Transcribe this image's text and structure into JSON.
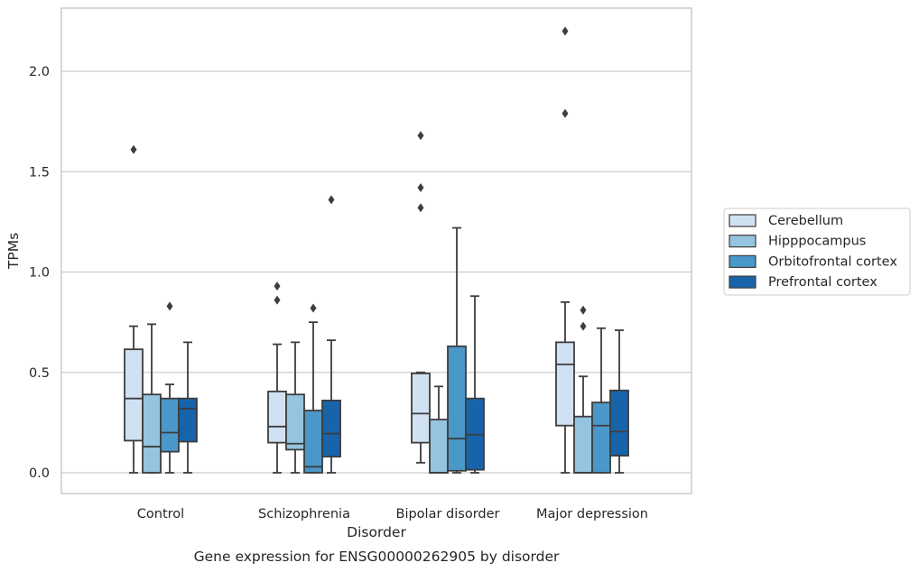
{
  "chart_data": {
    "type": "box",
    "title": "",
    "caption": "Gene expression for ENSG00000262905 by disorder",
    "xlabel": "Disorder",
    "ylabel": "TPMs",
    "ylim": [
      -0.105,
      2.33
    ],
    "yticks": [
      0.0,
      0.5,
      1.0,
      1.5,
      2.0
    ],
    "ytick_labels": [
      "0.0",
      "0.5",
      "1.0",
      "1.5",
      "2.0"
    ],
    "grid": "horizontal",
    "legend_position": "center-right",
    "categories": [
      "Control",
      "Schizophrenia",
      "Bipolar disorder",
      "Major depression"
    ],
    "series": [
      {
        "name": "Cerebellum",
        "color": "#d0e1f2",
        "boxes": [
          {
            "whislo": 0.0,
            "q1": 0.16,
            "med": 0.37,
            "q3": 0.615,
            "whishi": 0.73,
            "fliers": [
              1.61
            ]
          },
          {
            "whislo": 0.0,
            "q1": 0.15,
            "med": 0.23,
            "q3": 0.405,
            "whishi": 0.64,
            "fliers": [
              0.86,
              0.93
            ]
          },
          {
            "whislo": 0.05,
            "q1": 0.15,
            "med": 0.295,
            "q3": 0.495,
            "whishi": 0.5,
            "fliers": [
              1.32,
              1.42,
              1.68
            ]
          },
          {
            "whislo": 0.0,
            "q1": 0.235,
            "med": 0.54,
            "q3": 0.65,
            "whishi": 0.85,
            "fliers": [
              1.79,
              2.2
            ]
          }
        ]
      },
      {
        "name": "Hipppocampus",
        "color": "#94c4df",
        "boxes": [
          {
            "whislo": 0.0,
            "q1": 0.0,
            "med": 0.13,
            "q3": 0.39,
            "whishi": 0.74,
            "fliers": []
          },
          {
            "whislo": 0.0,
            "q1": 0.115,
            "med": 0.145,
            "q3": 0.39,
            "whishi": 0.65,
            "fliers": []
          },
          {
            "whislo": 0.0,
            "q1": 0.0,
            "med": 0.0,
            "q3": 0.265,
            "whishi": 0.43,
            "fliers": []
          },
          {
            "whislo": 0.0,
            "q1": 0.0,
            "med": 0.0,
            "q3": 0.28,
            "whishi": 0.48,
            "fliers": [
              0.73,
              0.81
            ]
          }
        ]
      },
      {
        "name": "Orbitofrontal cortex",
        "color": "#4a98c9",
        "boxes": [
          {
            "whislo": 0.0,
            "q1": 0.105,
            "med": 0.2,
            "q3": 0.37,
            "whishi": 0.44,
            "fliers": [
              0.83
            ]
          },
          {
            "whislo": 0.0,
            "q1": 0.0,
            "med": 0.03,
            "q3": 0.31,
            "whishi": 0.75,
            "fliers": [
              0.82
            ]
          },
          {
            "whislo": 0.0,
            "q1": 0.01,
            "med": 0.17,
            "q3": 0.63,
            "whishi": 1.22,
            "fliers": []
          },
          {
            "whislo": 0.0,
            "q1": 0.0,
            "med": 0.235,
            "q3": 0.35,
            "whishi": 0.72,
            "fliers": []
          }
        ]
      },
      {
        "name": "Prefrontal cortex",
        "color": "#1764ab",
        "boxes": [
          {
            "whislo": 0.0,
            "q1": 0.155,
            "med": 0.32,
            "q3": 0.37,
            "whishi": 0.65,
            "fliers": []
          },
          {
            "whislo": 0.0,
            "q1": 0.08,
            "med": 0.195,
            "q3": 0.36,
            "whishi": 0.66,
            "fliers": [
              1.36
            ]
          },
          {
            "whislo": 0.0,
            "q1": 0.015,
            "med": 0.19,
            "q3": 0.37,
            "whishi": 0.88,
            "fliers": []
          },
          {
            "whislo": 0.0,
            "q1": 0.085,
            "med": 0.205,
            "q3": 0.41,
            "whishi": 0.71,
            "fliers": []
          }
        ]
      }
    ]
  },
  "colors": {
    "grid": "#cccccc",
    "box_edge": "#3d3d3d",
    "axes_frame": "#cccccc"
  }
}
